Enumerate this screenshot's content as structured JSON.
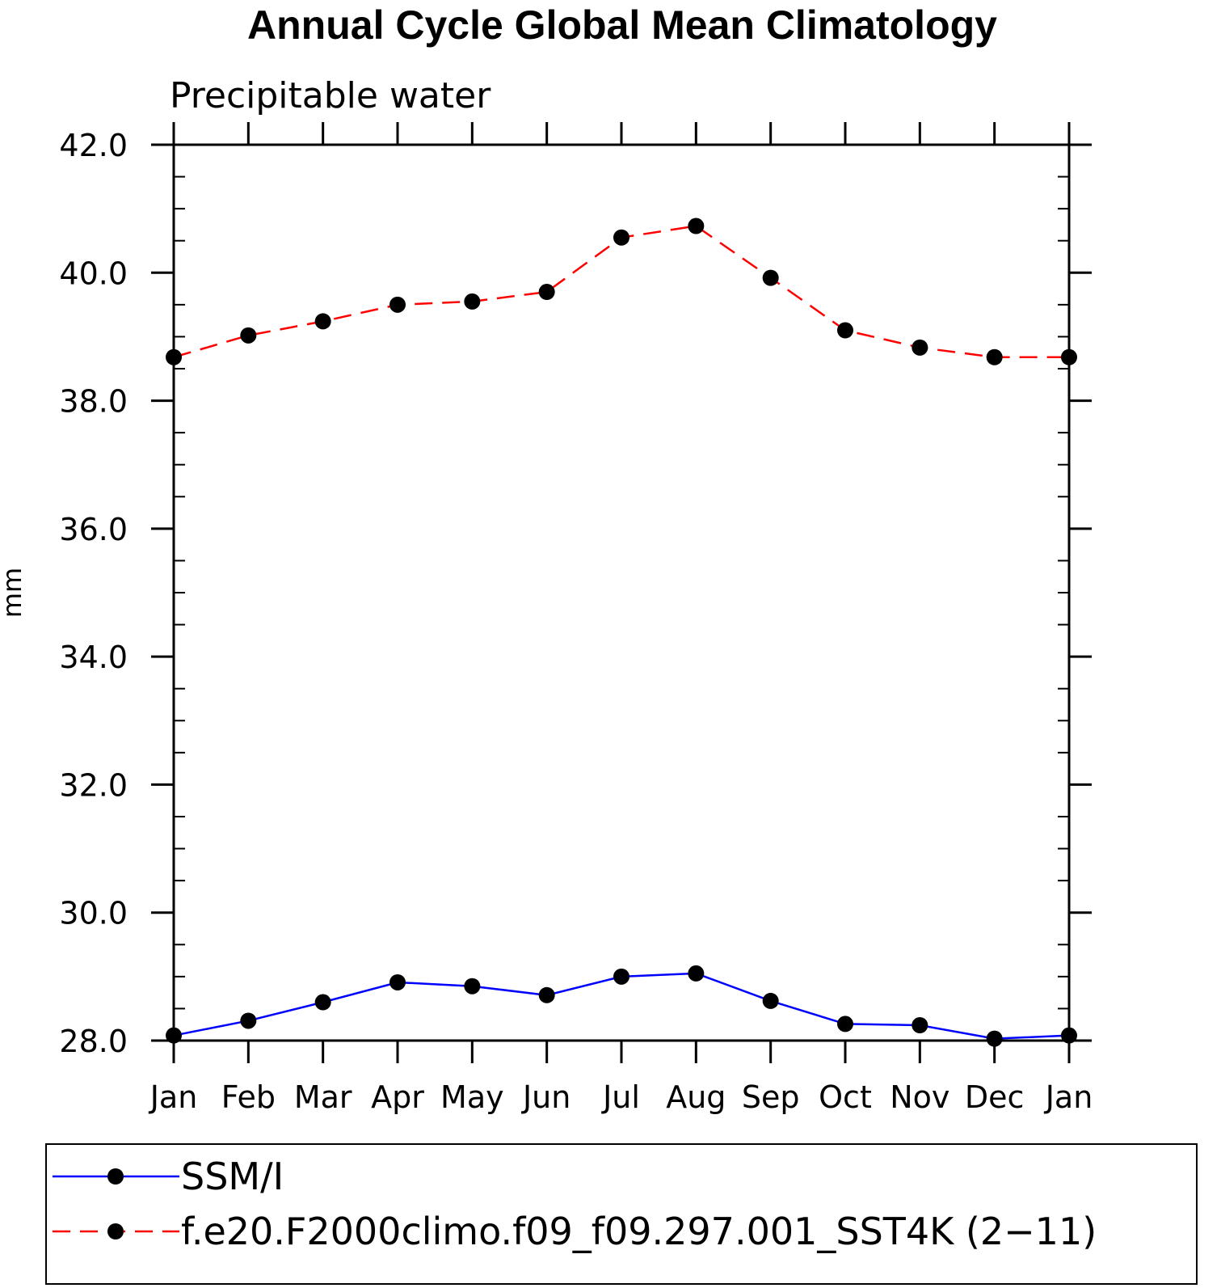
{
  "chart_data": {
    "type": "line",
    "title": "Annual Cycle Global Mean Climatology",
    "subtitle": "Precipitable water",
    "ylabel": "mm",
    "xlabel": "",
    "categories": [
      "Jan",
      "Feb",
      "Mar",
      "Apr",
      "May",
      "Jun",
      "Jul",
      "Aug",
      "Sep",
      "Oct",
      "Nov",
      "Dec",
      "Jan"
    ],
    "ylim": [
      28.0,
      42.0
    ],
    "yticks": [
      "28.0",
      "30.0",
      "32.0",
      "34.0",
      "36.0",
      "38.0",
      "40.0",
      "42.0"
    ],
    "grid": false,
    "legend_position": "bottom",
    "series": [
      {
        "name": "SSM/I",
        "color": "#0000ff",
        "dashed": false,
        "values": [
          28.08,
          28.31,
          28.6,
          28.91,
          28.85,
          28.71,
          29.0,
          29.05,
          28.62,
          28.26,
          28.24,
          28.03,
          28.08
        ]
      },
      {
        "name": "f.e20.F2000climo.f09_f09.297.001_SST4K (2−11)",
        "color": "#ff0000",
        "dashed": true,
        "values": [
          38.68,
          39.02,
          39.24,
          39.5,
          39.55,
          39.7,
          40.55,
          40.73,
          39.92,
          39.1,
          38.83,
          38.68,
          38.68
        ]
      }
    ]
  }
}
